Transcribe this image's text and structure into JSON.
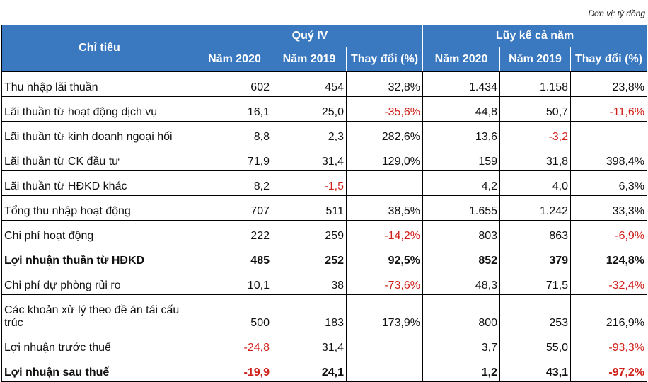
{
  "unit_note": "Đơn vị: tỷ đồng",
  "header": {
    "indicator": "Chỉ tiêu",
    "group1": "Quý IV",
    "group2": "Lũy kế cả năm",
    "cols": [
      "Năm 2020",
      "Năm 2019",
      "Thay đổi (%)",
      "Năm 2020",
      "Năm 2019",
      "Thay đổi (%)"
    ]
  },
  "colors": {
    "header_bg": "#3a78c0",
    "negative": "#d0201a"
  },
  "rows": [
    {
      "label": "Thu nhập lãi thuần",
      "values": [
        "602",
        "454",
        "32,8%",
        "1.434",
        "1.158",
        "23,8%"
      ]
    },
    {
      "label": "Lãi thuần từ hoạt động dịch vụ",
      "values": [
        "16,1",
        "25,0",
        "-35,6%",
        "44,8",
        "50,7",
        "-11,6%"
      ]
    },
    {
      "label": "Lãi thuần từ kinh doanh ngoại hối",
      "values": [
        "8,8",
        "2,3",
        "282,6%",
        "13,6",
        "-3,2",
        ""
      ]
    },
    {
      "label": "Lãi thuần từ CK đầu tư",
      "values": [
        "71,9",
        "31,4",
        "129,0%",
        "159",
        "31,8",
        "398,4%"
      ]
    },
    {
      "label": "Lãi thuần từ HĐKD khác",
      "values": [
        "8,2",
        "-1,5",
        "",
        "4,2",
        "4,0",
        "6,3%"
      ]
    },
    {
      "label": "Tổng thu nhập hoạt động",
      "values": [
        "707",
        "511",
        "38,5%",
        "1.655",
        "1.242",
        "33,3%"
      ]
    },
    {
      "label": "Chi phí hoạt động",
      "values": [
        "222",
        "259",
        "-14,2%",
        "803",
        "863",
        "-6,9%"
      ]
    },
    {
      "label": "Lợi nhuận thuần từ HĐKD",
      "values": [
        "485",
        "252",
        "92,5%",
        "852",
        "379",
        "124,8%"
      ],
      "bold": true
    },
    {
      "label": "Chi phí dự phòng rủi ro",
      "values": [
        "10,1",
        "38",
        "-73,6%",
        "48,3",
        "71,5",
        "-32,4%"
      ]
    },
    {
      "label": "Các khoản xử lý theo đề án tái cấu trúc",
      "values": [
        "500",
        "183",
        "173,9%",
        "800",
        "253",
        "216,9%"
      ],
      "tall": true
    },
    {
      "label": "Lợi nhuận trước thuế",
      "values": [
        "-24,8",
        "31,4",
        "",
        "3,7",
        "55,0",
        "-93,3%"
      ]
    },
    {
      "label": "Lợi nhuận sau thuế",
      "values": [
        "-19,9",
        "24,1",
        "",
        "1,2",
        "43,1",
        "-97,2%"
      ],
      "bold": true
    }
  ]
}
